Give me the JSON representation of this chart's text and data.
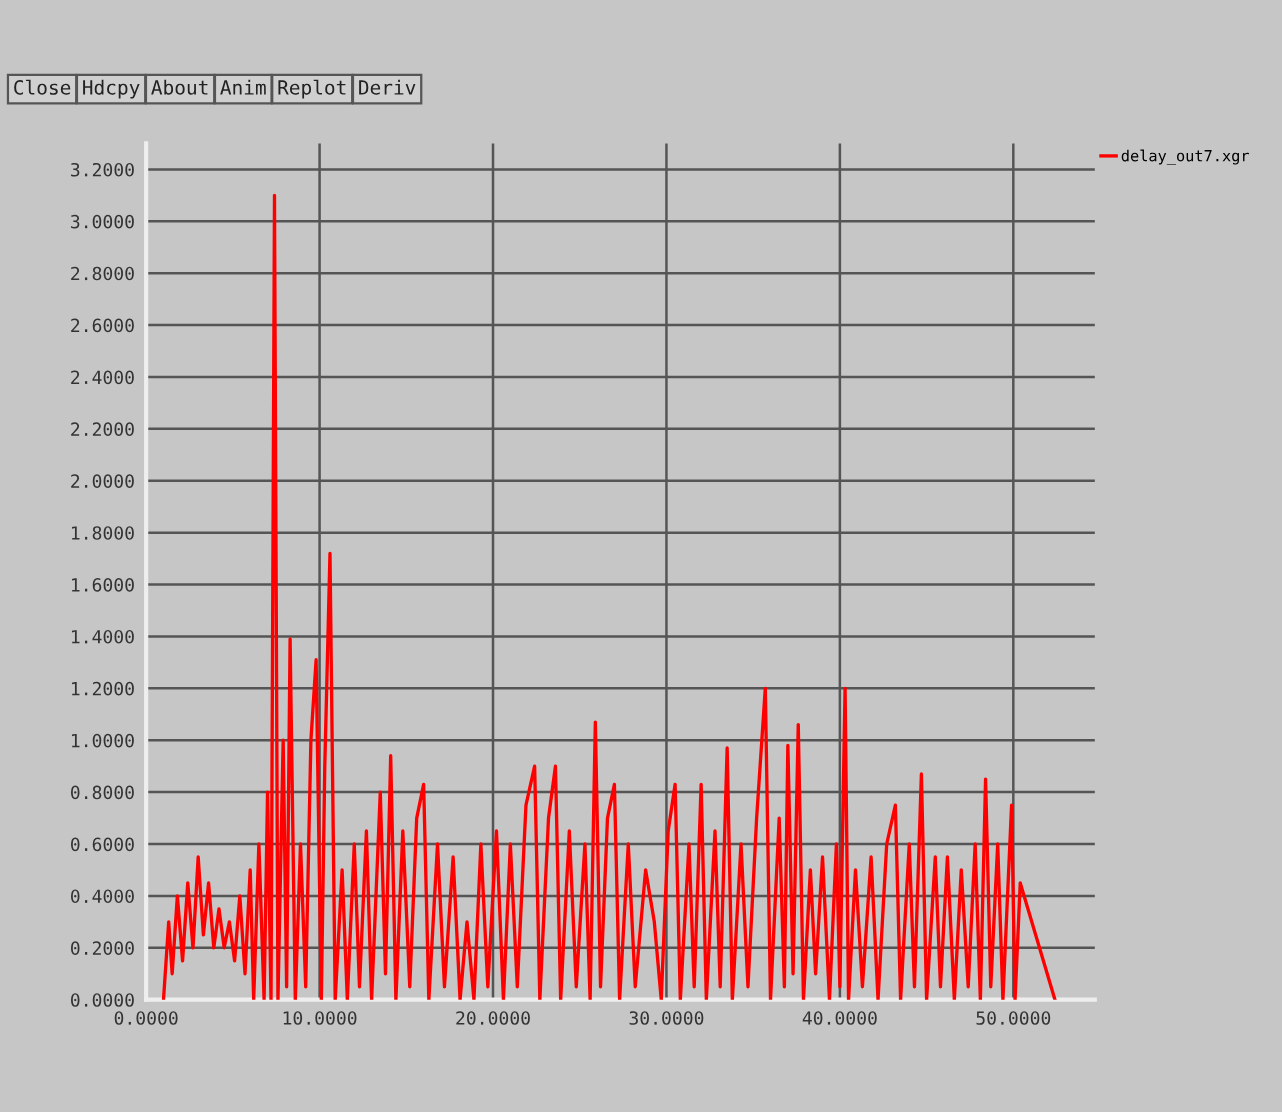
{
  "chart_data": {
    "type": "line",
    "legend": "top right",
    "grid": true,
    "marker": "none",
    "line_style": "solid",
    "annotations": [
      "Close",
      "Hdcpy",
      "About",
      "Anim",
      "Replot",
      "Deriv"
    ],
    "xlim": [
      0,
      54.7
    ],
    "ylim": [
      0,
      3.3
    ],
    "xticks": [
      {
        "value": 0,
        "label": "0.0000"
      },
      {
        "value": 10,
        "label": "10.0000"
      },
      {
        "value": 20,
        "label": "20.0000"
      },
      {
        "value": 30,
        "label": "30.0000"
      },
      {
        "value": 40,
        "label": "40.0000"
      },
      {
        "value": 50,
        "label": "50.0000"
      }
    ],
    "yticks": [
      {
        "value": 0,
        "label": "0.0000"
      },
      {
        "value": 0.2,
        "label": "0.2000"
      },
      {
        "value": 0.4,
        "label": "0.4000"
      },
      {
        "value": 0.6,
        "label": "0.6000"
      },
      {
        "value": 0.8,
        "label": "0.8000"
      },
      {
        "value": 1.0,
        "label": "1.0000"
      },
      {
        "value": 1.2,
        "label": "1.2000"
      },
      {
        "value": 1.4,
        "label": "1.4000"
      },
      {
        "value": 1.6,
        "label": "1.6000"
      },
      {
        "value": 1.8,
        "label": "1.8000"
      },
      {
        "value": 2.0,
        "label": "2.0000"
      },
      {
        "value": 2.2,
        "label": "2.2000"
      },
      {
        "value": 2.4,
        "label": "2.4000"
      },
      {
        "value": 2.6,
        "label": "2.6000"
      },
      {
        "value": 2.8,
        "label": "2.8000"
      },
      {
        "value": 3.0,
        "label": "3.0000"
      },
      {
        "value": 3.2,
        "label": "3.2000"
      }
    ],
    "series": [
      {
        "name": "delay_out7.xgr",
        "color": "#ff0000",
        "x": [
          1.0,
          1.3,
          1.5,
          1.8,
          2.1,
          2.4,
          2.7,
          3.0,
          3.3,
          3.6,
          3.9,
          4.2,
          4.5,
          4.8,
          5.1,
          5.4,
          5.7,
          6.0,
          6.2,
          6.5,
          6.8,
          7.0,
          7.2,
          7.4,
          7.6,
          7.9,
          8.1,
          8.3,
          8.6,
          8.9,
          9.2,
          9.5,
          9.8,
          10.1,
          10.3,
          10.6,
          10.9,
          11.3,
          11.6,
          12.0,
          12.3,
          12.7,
          13.0,
          13.5,
          13.8,
          14.1,
          14.4,
          14.8,
          15.2,
          15.6,
          16.0,
          16.3,
          16.8,
          17.2,
          17.7,
          18.1,
          18.5,
          18.9,
          19.3,
          19.7,
          20.2,
          20.6,
          21.0,
          21.4,
          21.9,
          22.4,
          22.7,
          23.2,
          23.6,
          23.9,
          24.4,
          24.8,
          25.3,
          25.6,
          25.9,
          26.2,
          26.6,
          27.0,
          27.3,
          27.8,
          28.2,
          28.8,
          29.3,
          29.7,
          30.1,
          30.5,
          30.8,
          31.3,
          31.6,
          32.0,
          32.3,
          32.8,
          33.1,
          33.5,
          33.8,
          34.3,
          34.7,
          35.2,
          35.7,
          36.0,
          36.5,
          36.8,
          37.0,
          37.3,
          37.6,
          37.9,
          38.3,
          38.6,
          39.0,
          39.4,
          39.8,
          40.0,
          40.3,
          40.5,
          40.9,
          41.3,
          41.8,
          42.2,
          42.7,
          43.2,
          43.5,
          44.0,
          44.3,
          44.7,
          45.0,
          45.5,
          45.8,
          46.2,
          46.6,
          47.0,
          47.4,
          47.8,
          48.1,
          48.4,
          48.7,
          49.1,
          49.4,
          49.9,
          50.1,
          50.4,
          52.4
        ],
        "values": [
          0.0,
          0.3,
          0.1,
          0.4,
          0.15,
          0.45,
          0.2,
          0.55,
          0.25,
          0.45,
          0.2,
          0.35,
          0.2,
          0.3,
          0.15,
          0.4,
          0.1,
          0.5,
          0.0,
          0.6,
          0.0,
          0.8,
          0.0,
          3.1,
          0.0,
          1.0,
          0.05,
          1.39,
          0.0,
          0.6,
          0.05,
          1.0,
          1.31,
          0.0,
          0.9,
          1.72,
          0.0,
          0.5,
          0.0,
          0.6,
          0.05,
          0.65,
          0.0,
          0.8,
          0.1,
          0.94,
          0.0,
          0.65,
          0.05,
          0.7,
          0.83,
          0.0,
          0.6,
          0.05,
          0.55,
          0.0,
          0.3,
          0.0,
          0.6,
          0.05,
          0.65,
          0.0,
          0.6,
          0.05,
          0.75,
          0.9,
          0.0,
          0.7,
          0.9,
          0.0,
          0.65,
          0.05,
          0.6,
          0.0,
          1.07,
          0.05,
          0.7,
          0.83,
          0.0,
          0.6,
          0.05,
          0.5,
          0.3,
          0.0,
          0.65,
          0.83,
          0.0,
          0.6,
          0.05,
          0.83,
          0.0,
          0.65,
          0.05,
          0.97,
          0.0,
          0.6,
          0.05,
          0.7,
          1.2,
          0.0,
          0.7,
          0.05,
          0.98,
          0.1,
          1.06,
          0.0,
          0.5,
          0.1,
          0.55,
          0.0,
          0.6,
          0.05,
          1.2,
          0.0,
          0.5,
          0.05,
          0.55,
          0.0,
          0.6,
          0.75,
          0.0,
          0.6,
          0.05,
          0.87,
          0.0,
          0.55,
          0.05,
          0.55,
          0.0,
          0.5,
          0.05,
          0.6,
          0.0,
          0.85,
          0.05,
          0.6,
          0.0,
          0.75,
          0.0,
          0.45,
          0.0
        ]
      }
    ]
  }
}
